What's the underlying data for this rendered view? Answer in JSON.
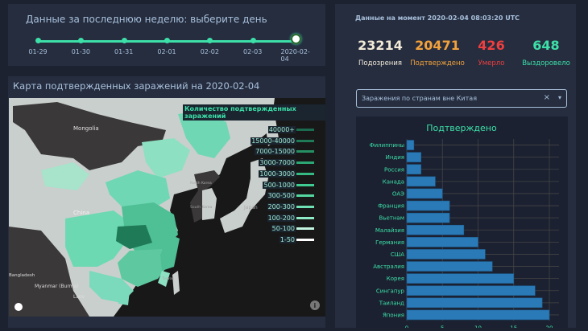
{
  "slider": {
    "title": "Данные за последнюю неделю: выберите день",
    "ticks": [
      "01-29",
      "01-30",
      "01-31",
      "02-01",
      "02-02",
      "02-03",
      "2020-02-04"
    ],
    "selected_index": 6
  },
  "map": {
    "title": "Карта подтвержденных заражений на 2020-02-04",
    "legend_title": "Количество подтвержденных заражений",
    "legend": [
      {
        "label": "40000+",
        "color": "#1b6b4e"
      },
      {
        "label": "15000-40000",
        "color": "#1f7a57"
      },
      {
        "label": "7000-15000",
        "color": "#259163"
      },
      {
        "label": "3000-7000",
        "color": "#2ca874"
      },
      {
        "label": "1000-3000",
        "color": "#35ba84"
      },
      {
        "label": "500-1000",
        "color": "#3fcb92"
      },
      {
        "label": "300-500",
        "color": "#54d7a0"
      },
      {
        "label": "200-300",
        "color": "#6fe0b2"
      },
      {
        "label": "100-200",
        "color": "#8eeac5"
      },
      {
        "label": "50-100",
        "color": "#c3f5e0"
      },
      {
        "label": "1-50",
        "color": "#ffffff"
      }
    ],
    "place_labels": [
      "Mongolia",
      "China",
      "North Korea",
      "South Korea",
      "Japan",
      "Myanmar (Burma)",
      "Laos",
      "Taiwan",
      "Bangladesh"
    ]
  },
  "stats": {
    "timestamp": "Данные на момент 2020-02-04 08:03:20 UTC",
    "items": [
      {
        "value": "23214",
        "label": "Подозрения",
        "color": "#f3ead8"
      },
      {
        "value": "20471",
        "label": "Подтверждено",
        "color": "#f2a23c"
      },
      {
        "value": "426",
        "label": "Умерло",
        "color": "#ef3f3f"
      },
      {
        "value": "648",
        "label": "Выздоровело",
        "color": "#3de0a8"
      }
    ]
  },
  "dropdown": {
    "value": "Заражения по странам вне Китая"
  },
  "chart_data": {
    "type": "bar",
    "orientation": "horizontal",
    "title": "Подтверждено",
    "categories": [
      "Филиппины",
      "Индия",
      "Россия",
      "Канада",
      "ОАЭ",
      "Франция",
      "Вьетнам",
      "Малайзия",
      "Германия",
      "США",
      "Австралия",
      "Корея",
      "Сингапур",
      "Таиланд",
      "Япония"
    ],
    "values": [
      1,
      2,
      2,
      4,
      5,
      6,
      6,
      8,
      10,
      11,
      12,
      15,
      18,
      19,
      20
    ],
    "xticks": [
      "0",
      "5",
      "10",
      "15",
      "20"
    ],
    "xlim": [
      0,
      20.5
    ],
    "bar_color": "#2a7ab8",
    "grid": true
  }
}
